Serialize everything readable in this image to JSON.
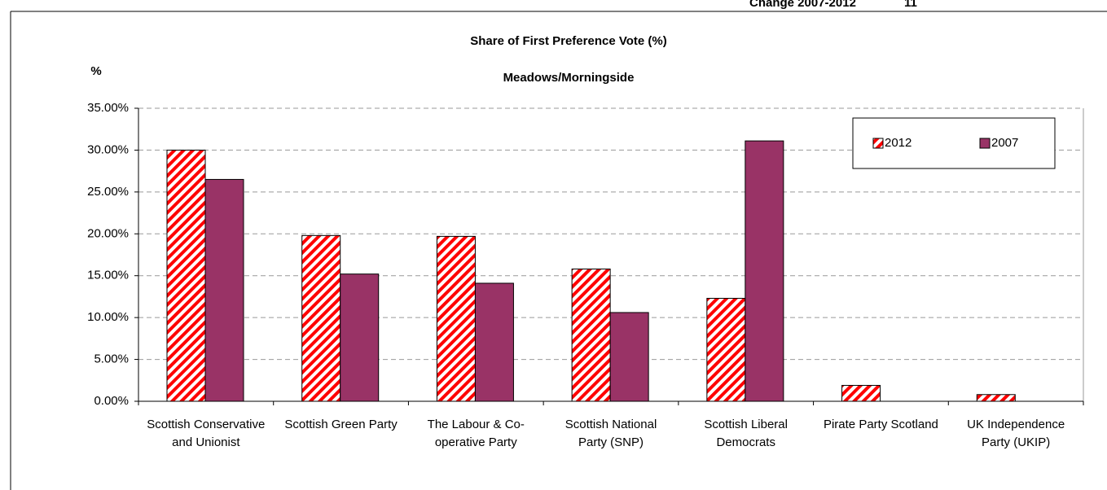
{
  "chart_data": {
    "type": "bar",
    "annotations": [
      "Change 2007-2012",
      "11"
    ],
    "title": "Share of First Preference Vote (%)",
    "subtitle": "Meadows/Morningside",
    "ylabel": "%",
    "categories": [
      "Scottish Conservative and Unionist",
      "Scottish Green Party",
      "The Labour & Co-operative Party",
      "Scottish National Party (SNP)",
      "Scottish Liberal Democrats",
      "Pirate Party Scotland",
      "UK Independence Party (UKIP)"
    ],
    "series": [
      {
        "name": "2012",
        "color": "#ff0000",
        "pattern": "hatch",
        "values": [
          30.0,
          19.8,
          19.7,
          15.8,
          12.3,
          1.9,
          0.8
        ]
      },
      {
        "name": "2007",
        "color": "#993366",
        "values": [
          26.5,
          15.2,
          14.1,
          10.6,
          31.1,
          null,
          null
        ]
      }
    ],
    "ylim": [
      0,
      35
    ],
    "yticks": [
      {
        "value": 0,
        "label": "0.00%"
      },
      {
        "value": 5,
        "label": "5.00%"
      },
      {
        "value": 10,
        "label": "10.00%"
      },
      {
        "value": 15,
        "label": "15.00%"
      },
      {
        "value": 20,
        "label": "20.00%"
      },
      {
        "value": 25,
        "label": "25.00%"
      },
      {
        "value": 30,
        "label": "30.00%"
      },
      {
        "value": 35,
        "label": "35.00%"
      }
    ],
    "grid": true,
    "legend": "top-right"
  }
}
